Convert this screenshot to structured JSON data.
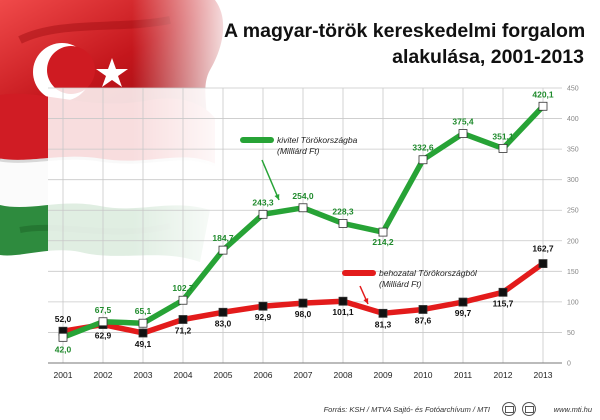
{
  "title": {
    "line1": "A magyar-török kereskedelmi forgalom",
    "line2": "alakulása, 2001-2013"
  },
  "chart_data": {
    "type": "line",
    "title": "A magyar-török kereskedelmi forgalom alakulása, 2001-2013",
    "xlabel": "",
    "ylabel": "",
    "ylim": [
      0,
      450
    ],
    "yticks": [
      0,
      50,
      100,
      150,
      200,
      250,
      300,
      350,
      400,
      450
    ],
    "grid": true,
    "categories": [
      "2001",
      "2002",
      "2003",
      "2004",
      "2005",
      "2006",
      "2007",
      "2008",
      "2009",
      "2010",
      "2011",
      "2012",
      "2013"
    ],
    "series": [
      {
        "name": "kivitel Törökországba (Milliárd Ft)",
        "legend_line1": "kivitel Törökországba",
        "legend_line2": "(Milliárd Ft)",
        "color": "#27a336",
        "values": [
          42.0,
          67.5,
          65.1,
          102.7,
          184.7,
          243.3,
          254.0,
          228.3,
          214.2,
          332.6,
          375.4,
          351.1,
          420.1
        ],
        "labels": [
          "42,0",
          "67,5",
          "65,1",
          "102,7",
          "184,7",
          "243,3",
          "254,0",
          "228,3",
          "214,2",
          "332,6",
          "375,4",
          "351,1",
          "420,1"
        ]
      },
      {
        "name": "behozatal Törökországból (Milliárd Ft)",
        "legend_line1": "behozatal Törökországból",
        "legend_line2": "(Milliárd Ft)",
        "color": "#e31b1b",
        "values": [
          52.0,
          62.9,
          49.1,
          71.2,
          83.0,
          92.9,
          98.0,
          101.1,
          81.3,
          87.6,
          99.7,
          115.7,
          162.7
        ],
        "labels": [
          "52,0",
          "62,9",
          "49,1",
          "71,2",
          "83,0",
          "92,9",
          "98,0",
          "101,1",
          "81,3",
          "87,6",
          "99,7",
          "115,7",
          "162,7"
        ]
      }
    ]
  },
  "footer": {
    "source": "Forrás: KSH / MTVA Sajtó- és Fotóarchívum / MTI",
    "site": "www.mti.hu"
  },
  "colors": {
    "flag_red": "#d51a22",
    "flag_green": "#2e8b3e",
    "grid": "#c8c8c8",
    "title_text": "#111111"
  }
}
